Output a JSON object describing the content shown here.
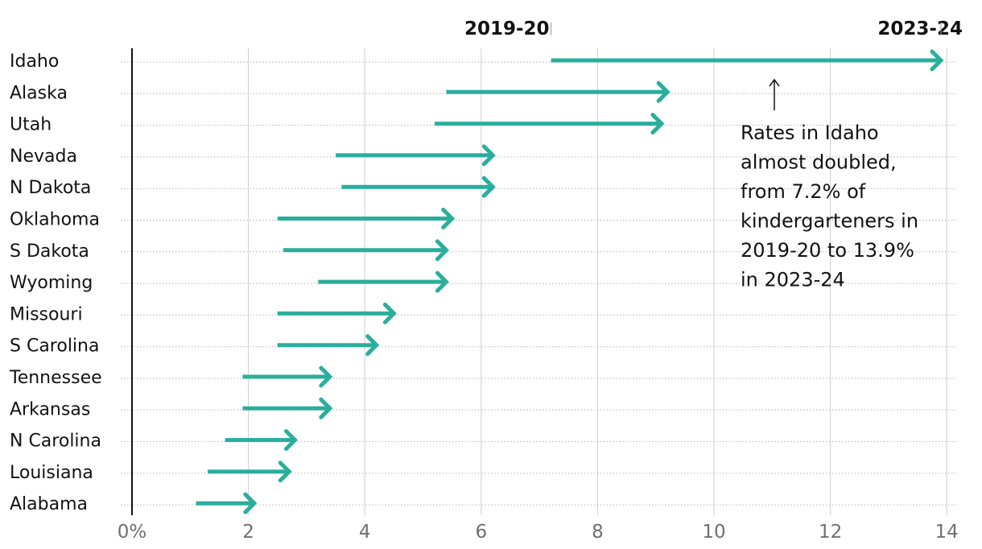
{
  "chart_data": {
    "type": "arrow-range",
    "orientation": "horizontal",
    "start_label": "2019-20",
    "end_label": "2023-24",
    "categories": [
      "Idaho",
      "Alaska",
      "Utah",
      "Nevada",
      "N Dakota",
      "Oklahoma",
      "S Dakota",
      "Wyoming",
      "Missouri",
      "S Carolina",
      "Tennessee",
      "Arkansas",
      "N Carolina",
      "Louisiana",
      "Alabama"
    ],
    "series": [
      {
        "name": "2019-20",
        "values": [
          7.2,
          5.4,
          5.2,
          3.5,
          3.6,
          2.5,
          2.6,
          3.2,
          2.5,
          2.5,
          1.9,
          1.9,
          1.6,
          1.3,
          1.1
        ]
      },
      {
        "name": "2023-24",
        "values": [
          13.9,
          9.2,
          9.1,
          6.2,
          6.2,
          5.5,
          5.4,
          5.4,
          4.5,
          4.2,
          3.4,
          3.4,
          2.8,
          2.7,
          2.1
        ]
      }
    ],
    "xlim": [
      0,
      14
    ],
    "xticks": [
      "0%",
      "2",
      "4",
      "6",
      "8",
      "10",
      "12",
      "14"
    ],
    "grid": true,
    "arrow_color": "#2aae9c",
    "annotation": {
      "lines": [
        "Rates in Idaho",
        "almost doubled,",
        "from 7.2% of",
        "kindergarteners in",
        "2019-20 to 13.9%",
        "in 2023-24"
      ]
    }
  }
}
